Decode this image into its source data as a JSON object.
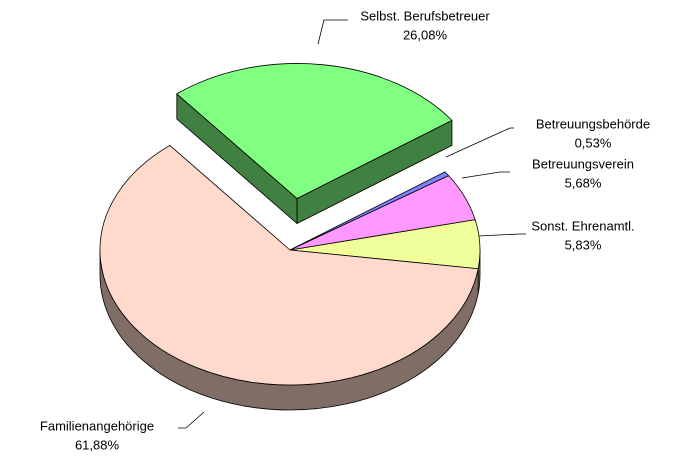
{
  "chart_data": {
    "type": "pie3d",
    "categories": [
      "Sonst. Ehrenamtl.",
      "Betreuungsverein",
      "Betreuungsbehörde",
      "Selbst. Berufsbetreuer",
      "Familienangehörige"
    ],
    "values": [
      5.83,
      5.68,
      0.53,
      26.08,
      61.88
    ],
    "value_labels": [
      "5,83%",
      "5,68%",
      "0,53%",
      "26,08%",
      "61,88%"
    ],
    "colors": [
      "#f0ff99",
      "#ff99ff",
      "#8080ff",
      "#80ff80",
      "#ffdacc"
    ]
  }
}
